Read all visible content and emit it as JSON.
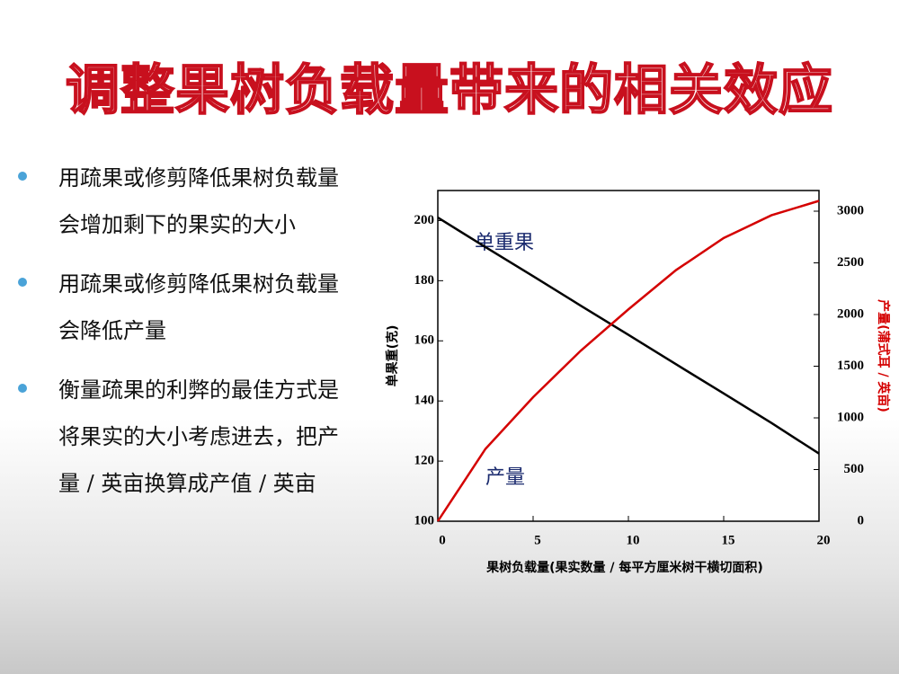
{
  "title": "调整果树负载量带来的相关效应",
  "bullets": [
    "用疏果或修剪降低果树负载量会增加剩下的果实的大小",
    "用疏果或修剪降低果树负载量会降低产量",
    "衡量疏果的利弊的最佳方式是将果实的大小考虑进去，把产量 / 英亩换算成产值 / 英亩"
  ],
  "chart_data": {
    "type": "line",
    "x_label": "果树负载量(果实数量 / 每平方厘米树干横切面积)",
    "y_label": "单果重(克)",
    "y2_label": "产量(蒲式耳 / 英亩)",
    "x": [
      0,
      2.5,
      5,
      7.5,
      10,
      12.5,
      15,
      17.5,
      20
    ],
    "series": [
      {
        "name": "单重果",
        "color": "#000000",
        "values": [
          201,
          191.2,
          181.5,
          171.7,
          162,
          152.2,
          142.5,
          132.7,
          122.5
        ]
      },
      {
        "name": "产量",
        "color": "#d40000",
        "axis": "y2",
        "values": [
          0,
          700,
          1200,
          1650,
          2050,
          2430,
          2740,
          2960,
          3100
        ]
      }
    ],
    "xlim": [
      0,
      20
    ],
    "xticks": [
      0,
      5,
      10,
      15,
      20
    ],
    "ylim": [
      100,
      210
    ],
    "yticks": [
      100,
      120,
      140,
      160,
      180,
      200
    ],
    "y2lim": [
      0,
      3200
    ],
    "y2ticks": [
      0,
      500,
      1000,
      1500,
      2000,
      2500,
      3000
    ]
  }
}
